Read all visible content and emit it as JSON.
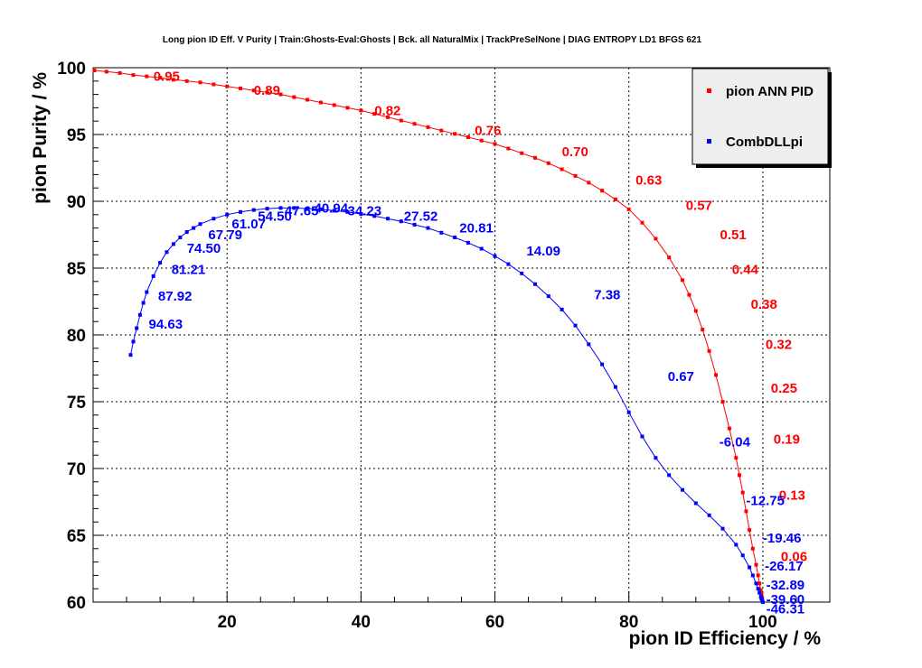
{
  "chart_data": {
    "type": "line",
    "title": "Long pion ID Eff. V Purity | Train:Ghosts-Eval:Ghosts | Bck. all NaturalMix | TrackPreSelNone | DIAG ENTROPY LD1 BFGS 621",
    "xlabel": "pion ID Efficiency / %",
    "ylabel": "pion Purity / %",
    "xlim": [
      0,
      110
    ],
    "ylim": [
      60,
      100
    ],
    "x_ticks": [
      20,
      40,
      60,
      80,
      100
    ],
    "y_ticks": [
      60,
      65,
      70,
      75,
      80,
      85,
      90,
      95,
      100
    ],
    "grid": true,
    "legend_position": "top-right",
    "series": [
      {
        "name": "pion ANN PID",
        "color": "#ff0000",
        "x": [
          0.2,
          2,
          4,
          6,
          8,
          10,
          12,
          14,
          16,
          18,
          20,
          22,
          24,
          26,
          28,
          30,
          32,
          34,
          36,
          38,
          40,
          42,
          44,
          46,
          48,
          50,
          52,
          54,
          56,
          58,
          60,
          62,
          64,
          66,
          68,
          70,
          72,
          74,
          76,
          78,
          80,
          82,
          84,
          86,
          88,
          89,
          90,
          91,
          92,
          93,
          94,
          95,
          96,
          96.5,
          97,
          97.5,
          98,
          98.5,
          99,
          99.3,
          99.5,
          99.7,
          99.8,
          99.9,
          100
        ],
        "y": [
          99.8,
          99.7,
          99.6,
          99.45,
          99.35,
          99.25,
          99.1,
          99.0,
          98.9,
          98.75,
          98.6,
          98.45,
          98.3,
          98.15,
          98.0,
          97.8,
          97.6,
          97.4,
          97.2,
          97.0,
          96.8,
          96.55,
          96.3,
          96.05,
          95.8,
          95.55,
          95.3,
          95.05,
          94.8,
          94.55,
          94.3,
          93.95,
          93.6,
          93.25,
          92.85,
          92.4,
          91.9,
          91.4,
          90.8,
          90.15,
          89.4,
          88.4,
          87.2,
          85.8,
          84.1,
          83.0,
          81.8,
          80.4,
          78.8,
          77.0,
          75.0,
          73.0,
          70.8,
          69.5,
          68.2,
          66.8,
          65.4,
          64.0,
          62.8,
          62.0,
          61.4,
          60.9,
          60.6,
          60.3,
          60.0
        ],
        "labels": [
          {
            "text": "0.95",
            "x": 9,
            "y": 99.35
          },
          {
            "text": "0.89",
            "x": 24,
            "y": 98.3
          },
          {
            "text": "0.82",
            "x": 42,
            "y": 96.8
          },
          {
            "text": "0.76",
            "x": 57,
            "y": 95.3
          },
          {
            "text": "0.70",
            "x": 70,
            "y": 93.7
          },
          {
            "text": "0.63",
            "x": 81,
            "y": 91.6
          },
          {
            "text": "0.57",
            "x": 88.5,
            "y": 89.7
          },
          {
            "text": "0.51",
            "x": 93.6,
            "y": 87.5
          },
          {
            "text": "0.44",
            "x": 95.4,
            "y": 84.9
          },
          {
            "text": "0.38",
            "x": 98.2,
            "y": 82.3
          },
          {
            "text": "0.32",
            "x": 100.4,
            "y": 79.3
          },
          {
            "text": "0.25",
            "x": 101.2,
            "y": 76.0
          },
          {
            "text": "0.19",
            "x": 101.6,
            "y": 72.2
          },
          {
            "text": "0.13",
            "x": 102.4,
            "y": 68.0
          },
          {
            "text": "0.06",
            "x": 102.7,
            "y": 63.4
          }
        ]
      },
      {
        "name": "CombDLLpi",
        "color": "#0000ff",
        "x": [
          5.6,
          6.0,
          6.5,
          7.0,
          7.5,
          8.0,
          9.0,
          10,
          11,
          12,
          13,
          14,
          15,
          16,
          18,
          20,
          22,
          24,
          26,
          28,
          30,
          32,
          34,
          36,
          38,
          40,
          42,
          44,
          46,
          48,
          50,
          52,
          54,
          56,
          58,
          60,
          62,
          64,
          66,
          68,
          70,
          72,
          74,
          76,
          78,
          80,
          82,
          84,
          86,
          88,
          90,
          92,
          94,
          96,
          97,
          98,
          98.5,
          99,
          99.3,
          99.5,
          99.7,
          99.8,
          99.9,
          100
        ],
        "y": [
          78.5,
          79.5,
          80.5,
          81.5,
          82.4,
          83.2,
          84.4,
          85.4,
          86.2,
          86.8,
          87.3,
          87.7,
          88.0,
          88.3,
          88.7,
          89.0,
          89.2,
          89.35,
          89.45,
          89.5,
          89.5,
          89.45,
          89.4,
          89.3,
          89.2,
          89.05,
          88.9,
          88.7,
          88.5,
          88.25,
          88.0,
          87.65,
          87.3,
          86.9,
          86.45,
          85.9,
          85.3,
          84.6,
          83.8,
          82.9,
          81.9,
          80.7,
          79.3,
          77.8,
          76.1,
          74.2,
          72.4,
          70.8,
          69.5,
          68.4,
          67.4,
          66.5,
          65.5,
          64.3,
          63.5,
          62.6,
          62.0,
          61.4,
          61.0,
          60.7,
          60.4,
          60.25,
          60.1,
          60.0
        ],
        "labels": [
          {
            "text": "94.63",
            "x": 8.3,
            "y": 80.8
          },
          {
            "text": "87.92",
            "x": 9.7,
            "y": 82.9
          },
          {
            "text": "81.21",
            "x": 11.7,
            "y": 84.9
          },
          {
            "text": "74.50",
            "x": 14.0,
            "y": 86.5
          },
          {
            "text": "67.79",
            "x": 17.2,
            "y": 87.5
          },
          {
            "text": "61.07",
            "x": 20.7,
            "y": 88.3
          },
          {
            "text": "54.50",
            "x": 24.6,
            "y": 88.9
          },
          {
            "text": "47.65",
            "x": 28.6,
            "y": 89.3
          },
          {
            "text": "40.94",
            "x": 33.0,
            "y": 89.5
          },
          {
            "text": "34.23",
            "x": 38.0,
            "y": 89.3
          },
          {
            "text": "27.52",
            "x": 46.4,
            "y": 88.9
          },
          {
            "text": "20.81",
            "x": 54.7,
            "y": 88.0
          },
          {
            "text": "14.09",
            "x": 64.7,
            "y": 86.3
          },
          {
            "text": "7.38",
            "x": 74.8,
            "y": 83.0
          },
          {
            "text": "0.67",
            "x": 85.8,
            "y": 76.9
          },
          {
            "text": "-6.04",
            "x": 93.5,
            "y": 72.0
          },
          {
            "text": "-12.75",
            "x": 97.5,
            "y": 67.6
          },
          {
            "text": "-19.46",
            "x": 100.0,
            "y": 64.8
          },
          {
            "text": "-26.17",
            "x": 100.3,
            "y": 62.7
          },
          {
            "text": "-32.89",
            "x": 100.5,
            "y": 61.3
          },
          {
            "text": "-39.60",
            "x": 100.5,
            "y": 60.2
          },
          {
            "text": "-46.31",
            "x": 100.5,
            "y": 59.5
          }
        ]
      }
    ]
  }
}
